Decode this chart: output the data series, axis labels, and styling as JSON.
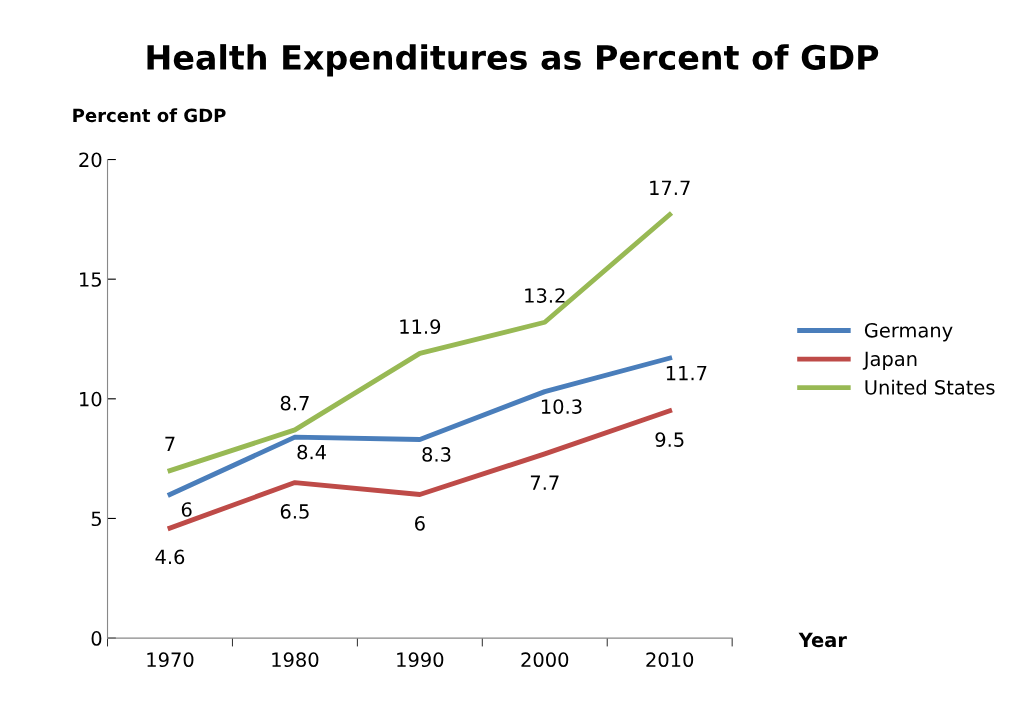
{
  "chart_data": {
    "type": "line",
    "title": "Health Expenditures as Percent of GDP",
    "ylabel": "Percent of GDP",
    "xlabel": "Year",
    "categories": [
      "1970",
      "1980",
      "1990",
      "2000",
      "2010"
    ],
    "series": [
      {
        "name": "Germany",
        "color": "#4a7ebb",
        "values": [
          6,
          8.4,
          8.3,
          10.3,
          11.7
        ]
      },
      {
        "name": "Japan",
        "color": "#be4b48",
        "values": [
          4.6,
          6.5,
          6,
          7.7,
          9.5
        ]
      },
      {
        "name": "United States",
        "color": "#98b954",
        "values": [
          7,
          8.7,
          11.9,
          13.2,
          17.7
        ]
      }
    ],
    "ylim": [
      0,
      20
    ],
    "yticks": [
      0,
      5,
      10,
      15,
      20
    ],
    "grid": false,
    "legend": "right",
    "marker": "none",
    "line_style": "solid",
    "data_labels": true
  }
}
